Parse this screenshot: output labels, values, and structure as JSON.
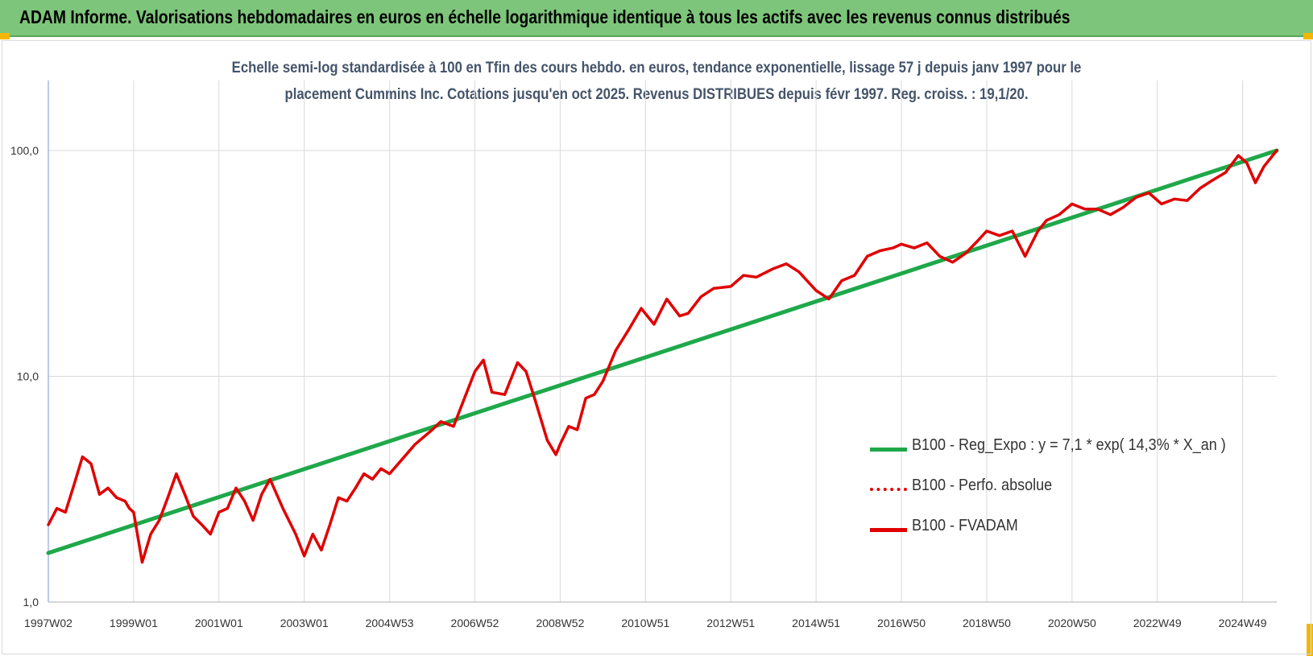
{
  "header": {
    "title": "ADAM Informe. Valorisations hebdomadaires en euros en échelle logarithmique identique à tous les actifs avec les revenus connus distribués"
  },
  "subtitle": {
    "line1": "Echelle semi-log standardisée à 100 en Tfin des cours hebdo. en euros, tendance exponentielle, lissage 57 j depuis janv 1997 pour le",
    "line2": "placement Cummins Inc. Cotations jusqu'en oct 2025. Revenus DISTRIBUES depuis févr 1997. Reg. croiss. : 19,1/20."
  },
  "colors": {
    "banner": "#7dc57a",
    "regression": "#1fa84a",
    "fvadam": "#e00000",
    "perfo": "#e00000",
    "grid": "#d9d9d9"
  },
  "chart_data": {
    "type": "line",
    "y_scale": "log",
    "ylim": [
      1,
      200
    ],
    "y_ticks": [
      {
        "value": 1,
        "label": "1,0"
      },
      {
        "value": 10,
        "label": "10,0"
      },
      {
        "value": 100,
        "label": "100,0"
      }
    ],
    "x_range": [
      1997.0,
      2025.8
    ],
    "x_ticks": [
      {
        "value": 1997.0,
        "label": "1997W02"
      },
      {
        "value": 1999.0,
        "label": "1999W01"
      },
      {
        "value": 2001.0,
        "label": "2001W01"
      },
      {
        "value": 2003.0,
        "label": "2003W01"
      },
      {
        "value": 2005.0,
        "label": "2004W53"
      },
      {
        "value": 2007.0,
        "label": "2006W52"
      },
      {
        "value": 2009.0,
        "label": "2008W52"
      },
      {
        "value": 2011.0,
        "label": "2010W51"
      },
      {
        "value": 2013.0,
        "label": "2012W51"
      },
      {
        "value": 2015.0,
        "label": "2014W51"
      },
      {
        "value": 2017.0,
        "label": "2016W50"
      },
      {
        "value": 2019.0,
        "label": "2018W50"
      },
      {
        "value": 2021.0,
        "label": "2020W50"
      },
      {
        "value": 2023.0,
        "label": "2022W49"
      },
      {
        "value": 2025.0,
        "label": "2024W49"
      }
    ],
    "series": [
      {
        "name": "B100 - Reg_Expo : y = 7,1 * exp( 14,3% *  X_an )",
        "style": "solid",
        "color": "#1fa84a",
        "x": [
          1997.0,
          2025.8
        ],
        "y": [
          1.65,
          100.0
        ]
      },
      {
        "name": "B100 - Perfo. absolue",
        "style": "dotted",
        "color": "#e00000",
        "x": [],
        "y": []
      },
      {
        "name": "B100 - FVADAM",
        "style": "solid",
        "color": "#e00000",
        "x": [
          1997.0,
          1997.2,
          1997.4,
          1997.6,
          1997.8,
          1998.0,
          1998.2,
          1998.4,
          1998.6,
          1998.8,
          1998.9,
          1999.0,
          1999.2,
          1999.4,
          1999.6,
          1999.8,
          2000.0,
          2000.2,
          2000.4,
          2000.6,
          2000.8,
          2001.0,
          2001.2,
          2001.4,
          2001.6,
          2001.8,
          2002.0,
          2002.2,
          2002.5,
          2002.8,
          2003.0,
          2003.2,
          2003.4,
          2003.6,
          2003.8,
          2004.0,
          2004.2,
          2004.4,
          2004.6,
          2004.8,
          2005.0,
          2005.3,
          2005.6,
          2006.0,
          2006.2,
          2006.5,
          2006.7,
          2007.0,
          2007.2,
          2007.4,
          2007.7,
          2008.0,
          2008.2,
          2008.4,
          2008.7,
          2008.9,
          2009.0,
          2009.2,
          2009.4,
          2009.6,
          2009.8,
          2010.0,
          2010.3,
          2010.6,
          2010.9,
          2011.2,
          2011.5,
          2011.8,
          2012.0,
          2012.3,
          2012.6,
          2013.0,
          2013.3,
          2013.6,
          2014.0,
          2014.3,
          2014.6,
          2015.0,
          2015.3,
          2015.6,
          2015.9,
          2016.2,
          2016.5,
          2016.8,
          2017.0,
          2017.3,
          2017.6,
          2017.9,
          2018.2,
          2018.5,
          2018.8,
          2019.0,
          2019.3,
          2019.6,
          2019.9,
          2020.2,
          2020.4,
          2020.7,
          2021.0,
          2021.3,
          2021.6,
          2021.9,
          2022.2,
          2022.5,
          2022.8,
          2023.1,
          2023.4,
          2023.7,
          2024.0,
          2024.3,
          2024.6,
          2024.9,
          2025.1,
          2025.3,
          2025.5,
          2025.8
        ],
        "y": [
          2.2,
          2.6,
          2.5,
          3.3,
          4.4,
          4.1,
          3.0,
          3.2,
          2.9,
          2.8,
          2.6,
          2.5,
          1.5,
          2.0,
          2.3,
          2.9,
          3.7,
          3.0,
          2.4,
          2.2,
          2.0,
          2.5,
          2.6,
          3.2,
          2.8,
          2.3,
          3.0,
          3.5,
          2.6,
          2.0,
          1.6,
          2.0,
          1.7,
          2.2,
          2.9,
          2.8,
          3.2,
          3.7,
          3.5,
          3.9,
          3.7,
          4.3,
          5.0,
          5.8,
          6.3,
          6.0,
          7.5,
          10.5,
          11.8,
          8.5,
          8.3,
          11.5,
          10.5,
          8.0,
          5.2,
          4.5,
          5.0,
          6.0,
          5.8,
          8.0,
          8.3,
          9.5,
          13.0,
          16.0,
          20.0,
          17.0,
          22.0,
          18.5,
          19.0,
          22.5,
          24.5,
          25.0,
          28.0,
          27.5,
          30.0,
          31.5,
          29.0,
          24.0,
          22.0,
          26.5,
          28.0,
          34.0,
          36.0,
          37.0,
          38.5,
          37.0,
          39.0,
          34.0,
          32.0,
          35.0,
          40.0,
          44.0,
          42.0,
          44.0,
          34.0,
          44.0,
          49.0,
          52.0,
          58.0,
          55.0,
          55.0,
          52.0,
          56.0,
          62.0,
          65.0,
          58.0,
          61.0,
          60.0,
          68.0,
          74.0,
          80.0,
          95.0,
          88.0,
          72.0,
          85.0,
          100.0
        ]
      }
    ],
    "legend_position": "bottom-right",
    "grid": "vertical-and-major-horizontal"
  }
}
